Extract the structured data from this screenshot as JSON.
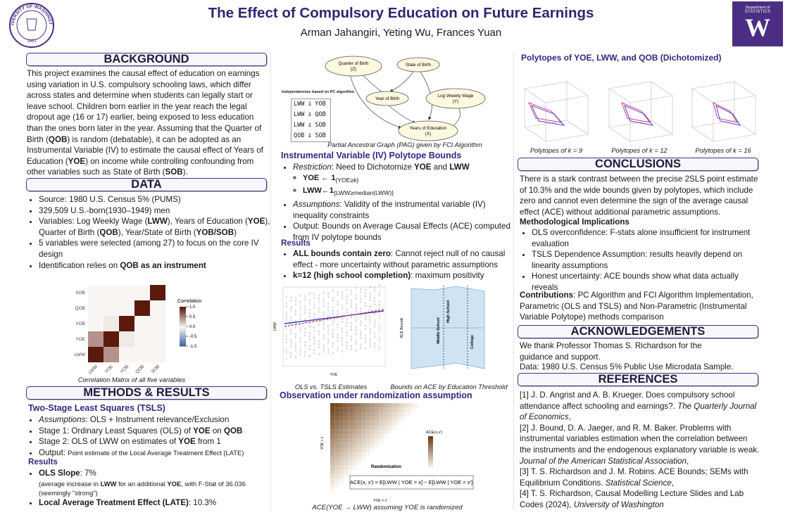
{
  "header": {
    "title": "The Effect of Compulsory Education on Future Earnings",
    "authors": "Arman Jahangiri, Yeting Wu, Frances Yuan",
    "seal_text": "UNIVERSITY OF WASHINGTON",
    "seal_year": "1861",
    "logo_dept": "Department of",
    "logo_unit": "STATISTICS",
    "logo_letter": "W"
  },
  "background": {
    "heading": "BACKGROUND",
    "text": [
      "This project examines the causal effect of education on earnings using variation in U.S. compulsory schooling laws, which differ across states and determine when students can legally start or leave school. Children born earlier in the year reach the legal dropout age (16 or 17) earlier, being exposed to less education than the ones born later in the year. Assuming that the Quarter of Birth (",
      "QOB",
      ") is random (debatable), it can be adopted as an Instrumental Variable (IV) to estimate the causal effect of Years of Education (",
      "YOE",
      ") on income while controlling confounding from other variables such as State of Birth (",
      "SOB",
      ")."
    ]
  },
  "data": {
    "heading": "DATA",
    "items": [
      [
        "Source: 1980 U.S. Census 5% (PUMS)"
      ],
      [
        " 329,509 U.S.-born(1930–1949) men"
      ],
      [
        "Variables: Log Weekly Wage (",
        "LWW",
        "), Years of Education (",
        "YOE",
        "), Quarter of Birth (",
        "QOB",
        "), Year/State of Birth (",
        "YOB/SOB",
        ")"
      ],
      [
        "5 variables were selected (among 27) to focus on the core IV design"
      ],
      [
        "Identification relies on ",
        "QOB as an instrument"
      ]
    ]
  },
  "heatmap": {
    "row_labels": [
      "SOB",
      "QOB",
      "YOB",
      "YOE",
      "LWW"
    ],
    "col_labels": [
      "LWW",
      "YOE",
      "YOB",
      "QOB",
      "SOB"
    ],
    "values": [
      [
        0,
        0,
        0,
        0,
        1
      ],
      [
        0,
        0,
        0,
        1,
        0
      ],
      [
        0,
        0.05,
        1,
        0,
        0
      ],
      [
        0.45,
        1,
        0.05,
        0,
        0
      ],
      [
        1,
        0.45,
        0,
        0,
        0
      ]
    ],
    "legend_title": "Correlation",
    "legend_ticks": [
      {
        "value": 1,
        "label": "1.0"
      },
      {
        "value": 0.5,
        "label": "0.5"
      },
      {
        "value": 0,
        "label": "0.0"
      },
      -0.5,
      {
        "value": -1,
        "label": "-1.0"
      }
    ],
    "lim": [
      -1,
      1
    ],
    "caption": "Correlation Matrix of all five variables"
  },
  "methods": {
    "heading": "METHODS & RESULTS",
    "subheading": "Two-Stage Least Squares (TSLS)",
    "items": [
      [
        "Assumptions",
        ": OLS + Instrument relevance/Exclusion"
      ],
      [
        "Stage 1: Ordinary Least Squares (OLS) of ",
        "YOE",
        " on ",
        "QOB"
      ],
      [
        "Stage 2: OLS of LWW on estimates of ",
        "YOE",
        " from 1"
      ],
      [
        "Output: ",
        "Point estimate of the Local Average Treatment Effect (LATE)"
      ]
    ],
    "results_heading": "Results",
    "results": [
      [
        "OLS Slope",
        ": 7%"
      ],
      [
        "Local Average Treatment Effect (LATE)",
        ": 10.3%"
      ]
    ],
    "ols_note": [
      "(average increase in ",
      "LWW",
      " for an additional ",
      "YOE",
      ", with F-Stat of 36.036 (seemingly \"strong\")"
    ]
  },
  "dag": {
    "nodes": [
      [
        "Quarter of Birth",
        "(Z)"
      ],
      [
        "State of Birth"
      ],
      [
        "Year of Birth"
      ],
      [
        "Log Weekly Wage",
        "(Y)"
      ],
      [
        "Years of Education",
        "(X)"
      ]
    ],
    "independencies_title": "Independencies based on PC algorithm",
    "independencies": [
      "LWW ⫫ YOB",
      "LWW ⫫ QOB",
      "LWW ⫫ SOB",
      "QOB ⫫ SOB"
    ],
    "caption": "Partial Ancestral Graph (PAG) given by FCI Algorithm"
  },
  "iv": {
    "heading": "Instrumental Variable (IV) Polytope Bounds",
    "items": [
      [
        "Restriction",
        ": Need to Dichotomize ",
        "YOE",
        " and ",
        "LWW"
      ],
      [
        "Assumptions",
        ": Validity of the instrumental variable (IV) inequality constraints"
      ],
      [
        "Output: Bounds on Average Causal Effects (ACE) computed from IV polytope bounds"
      ]
    ],
    "subitems": [
      [
        "YOE ← 1",
        "{YOE≥k}"
      ],
      [
        "LWW←1",
        "{LWW≥median(LWW)}"
      ]
    ],
    "results_heading": "Results",
    "results": [
      [
        "ALL bounds contain zero",
        ": Cannot reject null of no causal effect - more uncertainty without parametric assumptions"
      ],
      [
        "k=12 (high school completion)",
        ": maximum positivity"
      ]
    ]
  },
  "plots": {
    "left_ylabel": "LWW",
    "left_xlabel": "YOE",
    "right_ylabel": "ACE Bounds",
    "zones": [
      "Middle School",
      "High School",
      "College"
    ],
    "captions": [
      "OLS vs. TSLS Estimates",
      "Bounds on ACE by Education Threshold"
    ]
  },
  "observation": {
    "heading": "Observation under randomization assumption",
    "annotation": "Randomization",
    "formula": "ACE(x, x′) = E[LWW | YOE = x] − E[LWW | YOE = x′]",
    "xlabel": "YOE = x′",
    "ylabel": "YOE = x",
    "legend_title": "ACE(x,x′)",
    "caption": "ACE(YOE → LWW) assuming YOE is randomized"
  },
  "polytopes": {
    "heading": "Polytopes of YOE, LWW, and QOB (Dichotomized)",
    "captions": [
      "Polytopes of k = 9",
      "Polytopes of k = 12",
      "Polytopes of k = 16"
    ]
  },
  "conclusions": {
    "heading": "CONCLUSIONS",
    "text": "There is a stark contrast between the precise 2SLS point estimate of 10.3% and the wide bounds given by polytopes, which include zero and cannot even determine the sign of the average causal effect (ACE) without additional parametric assumptions.",
    "subheading": "Methodological Implications",
    "items": [
      "OLS overconfidence: F-stats alone insufficient for instrument evaluation",
      "TSLS Dependence Assumption: results heavily depend on linearity assumptions",
      "Honest uncertainty: ACE bounds show what data actually reveals"
    ],
    "contributions": [
      "Contributions",
      ": PC Algorithm and FCI Algorithm Implementation, Parametric (OLS and TSLS) and Non-Parametric (Instrumental Variable Polytope) methods comparison"
    ]
  },
  "acknowledgements": {
    "heading": "ACKNOWLEDGEMENTS",
    "lines": [
      "We thank Professor Thomas S. Richardson for the guidance and support.",
      "Data: 1980 U.S. Census 5% Public Use Microdata Sample."
    ]
  },
  "references": {
    "heading": "REFERENCES",
    "items": [
      [
        "[1] J. D. Angrist and A. B. Krueger. Does compulsory school attendance affect schooling and earnings?. ",
        "The Quarterly Journal of Economics",
        ","
      ],
      [
        "[2] J. Bound, D. A. Jaeger, and R. M. Baker. Problems with instrumental variables estimation when the correlation between the instruments and the endogenous explanatory variable is weak. ",
        "Journal of the American Statistical Association",
        ","
      ],
      [
        "[3] T. S. Richardson and J. M. Robins. ACE Bounds; SEMs with Equilibrium Conditions. ",
        "Statistical Science",
        ","
      ],
      [
        "[4] T. S. Richardson, Causal Modelling Lecture Slides and Lab Codes (2024), ",
        "University of Washington"
      ]
    ]
  }
}
